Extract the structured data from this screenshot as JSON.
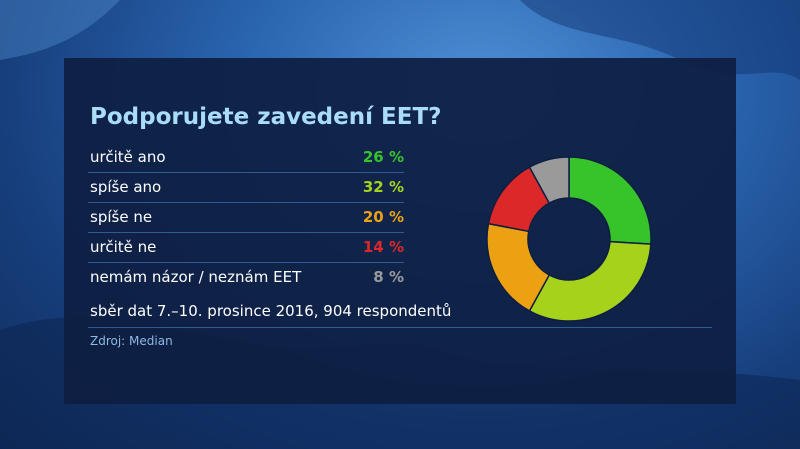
{
  "colors": {
    "title": "#a9dcf6",
    "certainly_yes": "#37c42b",
    "rather_yes": "#a6d21c",
    "rather_no": "#eba112",
    "certainly_no": "#dc2828",
    "no_opinion": "#9a9a9a"
  },
  "title": "Podporujete zavedení EET?",
  "rows": [
    {
      "label": "určitě ano",
      "value": "26 %"
    },
    {
      "label": "spíše ano",
      "value": "32 %"
    },
    {
      "label": "spíše ne",
      "value": "20 %"
    },
    {
      "label": "určitě ne",
      "value": "14 %"
    },
    {
      "label": "nemám názor / neznám EET",
      "value": "8 %"
    }
  ],
  "note": "sběr dat 7.–10. prosince 2016, 904 respondentů",
  "source": "Zdroj: Median",
  "chart_data": {
    "type": "pie",
    "donut": true,
    "title": "Podporujete zavedení EET?",
    "categories": [
      "určitě ano",
      "spíše ano",
      "spíše ne",
      "určitě ne",
      "nemám názor / neznám EET"
    ],
    "values": [
      26,
      32,
      20,
      14,
      8
    ],
    "unit": "%",
    "colors": [
      "#37c42b",
      "#a6d21c",
      "#eba112",
      "#dc2828",
      "#9a9a9a"
    ],
    "start": "top",
    "direction": "clockwise",
    "legend": "left"
  }
}
